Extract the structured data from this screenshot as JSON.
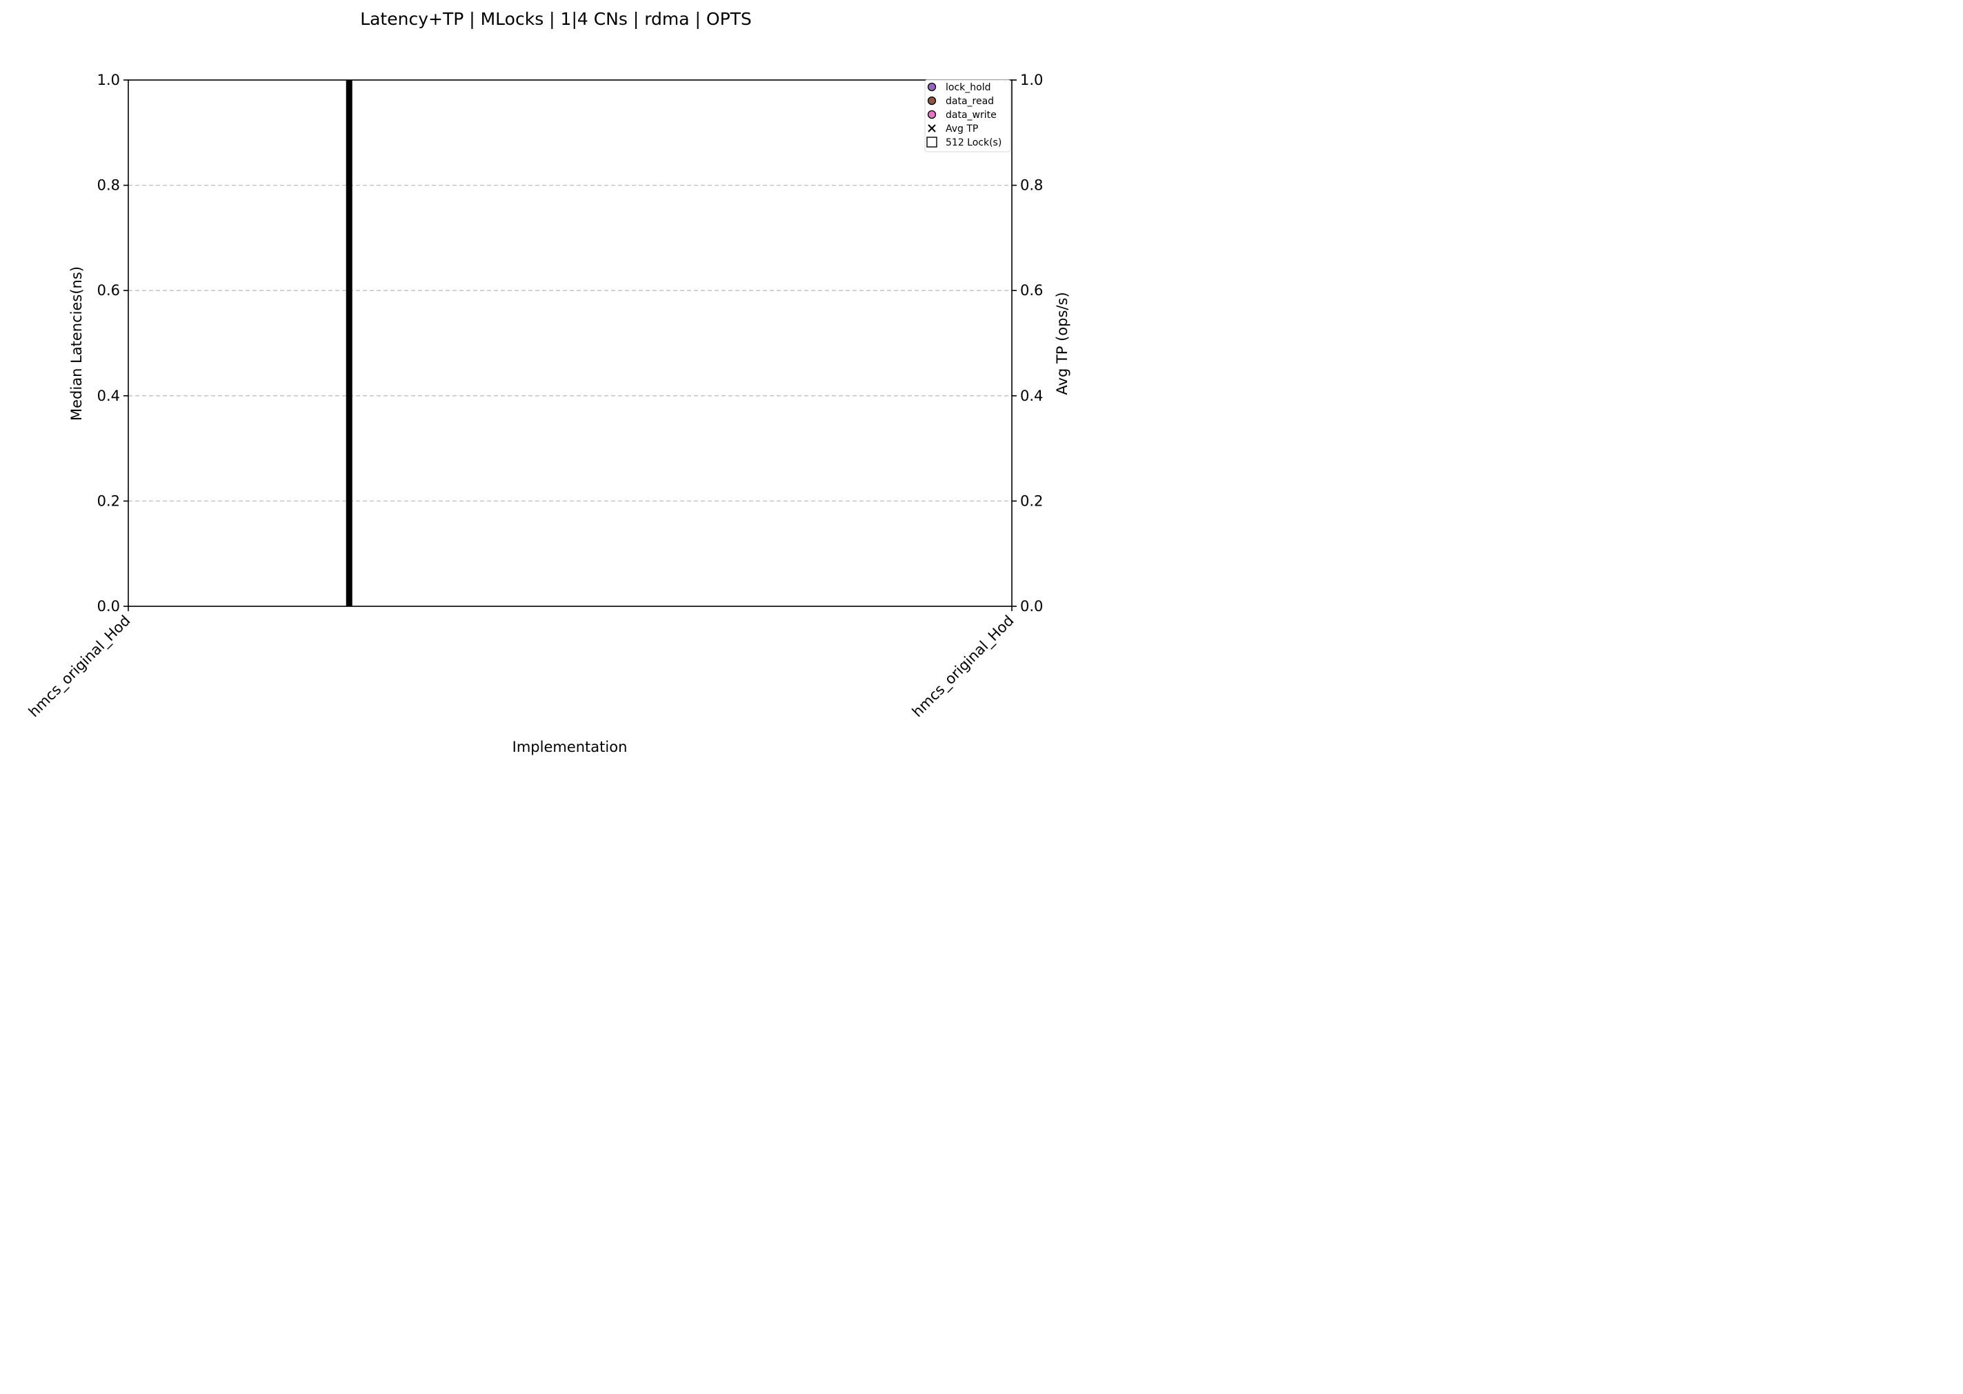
{
  "chart_data": {
    "type": "bar",
    "title": "Latency+TP | MLocks | 1|4 CNs | rdma | OPTS",
    "xlabel": "Implementation",
    "ylabel": "Median Latencies(ns)",
    "y2label": "Avg TP (ops/s)",
    "categories": [
      "hmcs_original_Hod",
      "hmcs_original_Hod"
    ],
    "ylim": [
      0,
      1.0
    ],
    "y2lim": [
      0,
      1.0
    ],
    "yticks": [
      "0.0",
      "0.2",
      "0.4",
      "0.6",
      "0.8",
      "1.0"
    ],
    "y2ticks": [
      "0.0",
      "0.2",
      "0.4",
      "0.6",
      "0.8",
      "1.0"
    ],
    "grid": true,
    "separator_x": 0.25,
    "legend_position": "top-right",
    "legend": [
      {
        "label": "lock_hold",
        "marker": "circle",
        "color": "#9467bd"
      },
      {
        "label": "data_read",
        "marker": "circle",
        "color": "#8c564b"
      },
      {
        "label": "data_write",
        "marker": "circle",
        "color": "#e377c2"
      },
      {
        "label": "Avg TP",
        "marker": "x",
        "color": "#000000"
      },
      {
        "label": "512 Lock(s)",
        "marker": "square",
        "color": "#ffffff"
      }
    ],
    "series": []
  }
}
